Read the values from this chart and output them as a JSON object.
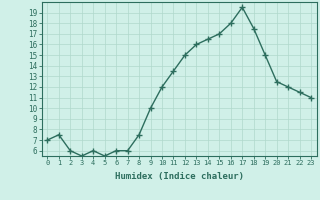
{
  "x": [
    0,
    1,
    2,
    3,
    4,
    5,
    6,
    7,
    8,
    9,
    10,
    11,
    12,
    13,
    14,
    15,
    16,
    17,
    18,
    19,
    20,
    21,
    22,
    23
  ],
  "y": [
    7,
    7.5,
    6,
    5.5,
    6,
    5.5,
    6,
    6,
    7.5,
    10,
    12,
    13.5,
    15,
    16,
    16.5,
    17,
    18,
    19.5,
    17.5,
    15,
    12.5,
    12,
    11.5,
    11
  ],
  "xlabel": "Humidex (Indice chaleur)",
  "ylim": [
    5.5,
    20
  ],
  "xlim": [
    -0.5,
    23.5
  ],
  "yticks": [
    6,
    7,
    8,
    9,
    10,
    11,
    12,
    13,
    14,
    15,
    16,
    17,
    18,
    19
  ],
  "xticks": [
    0,
    1,
    2,
    3,
    4,
    5,
    6,
    7,
    8,
    9,
    10,
    11,
    12,
    13,
    14,
    15,
    16,
    17,
    18,
    19,
    20,
    21,
    22,
    23
  ],
  "xtick_labels": [
    "0",
    "1",
    "2",
    "3",
    "4",
    "5",
    "6",
    "7",
    "8",
    "9",
    "10",
    "11",
    "12",
    "13",
    "14",
    "15",
    "16",
    "17",
    "18",
    "19",
    "20",
    "21",
    "22",
    "23"
  ],
  "line_color": "#2d6e5e",
  "marker": "+",
  "marker_size": 4,
  "bg_color": "#d0f0e8",
  "grid_color": "#b0d8cc",
  "line_width": 1.0
}
